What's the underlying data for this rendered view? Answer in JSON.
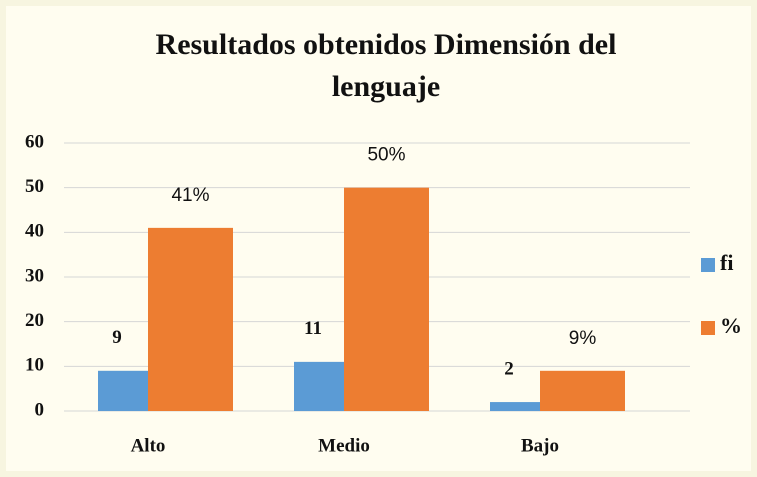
{
  "chart_data": {
    "type": "bar",
    "title": "Resultados obtenidos Dimensión del lenguaje",
    "categories": [
      "Alto",
      "Medio",
      "Bajo"
    ],
    "series": [
      {
        "name": "fi",
        "color": "#5b9bd5",
        "values": [
          9,
          11,
          2
        ]
      },
      {
        "name": "%",
        "color": "#ed7d31",
        "values": [
          41,
          50,
          9
        ],
        "value_labels": [
          "41%",
          "50%",
          "9%"
        ]
      }
    ],
    "ylim": [
      0,
      60
    ],
    "yticks": [
      0,
      10,
      20,
      30,
      40,
      50,
      60
    ],
    "grid": true,
    "legend": "right"
  }
}
